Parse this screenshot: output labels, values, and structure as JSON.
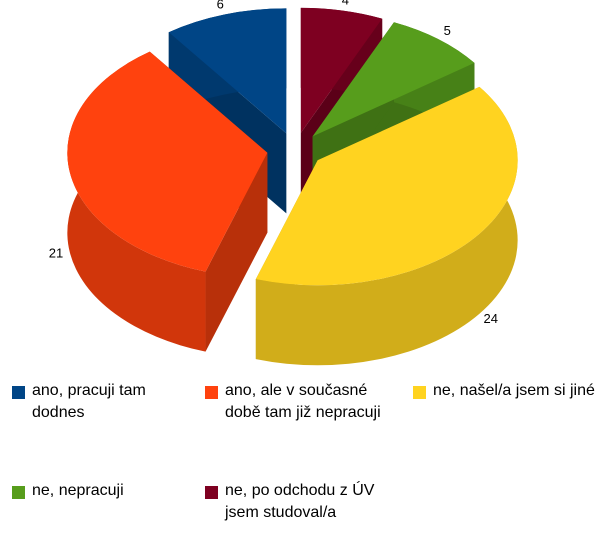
{
  "chart_data": {
    "type": "pie3d",
    "categories": [
      "ano, pracuji tam dodnes",
      "ano, ale v současné době tam již nepracuji",
      "ne, našel/a jsem si jiné",
      "ne, nepracuji",
      "ne, po odchodu z ÚV jsem studoval/a"
    ],
    "values": [
      6,
      21,
      24,
      5,
      4
    ],
    "colors": [
      "#004586",
      "#ff420e",
      "#ffd320",
      "#579d1c",
      "#7e0021"
    ],
    "legend": "bottom"
  }
}
